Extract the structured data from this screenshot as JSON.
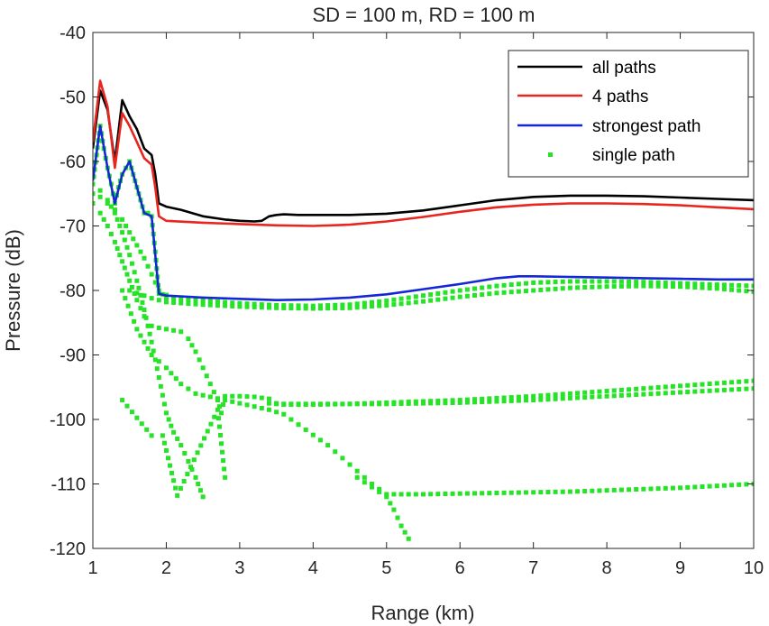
{
  "chart_data": {
    "type": "line",
    "title": "SD = 100 m, RD = 100 m",
    "xlabel": "Range (km)",
    "ylabel": "Pressure (dB)",
    "xlim": [
      1,
      10
    ],
    "ylim": [
      -120,
      -40
    ],
    "xticks": [
      1,
      2,
      3,
      4,
      5,
      6,
      7,
      8,
      9,
      10
    ],
    "yticks": [
      -120,
      -110,
      -100,
      -90,
      -80,
      -70,
      -60,
      -50,
      -40
    ],
    "xtick_labels": [
      "1",
      "2",
      "3",
      "4",
      "5",
      "6",
      "7",
      "8",
      "9",
      "10"
    ],
    "ytick_labels": [
      "-120",
      "-110",
      "-100",
      "-90",
      "-80",
      "-70",
      "-60",
      "-50",
      "-40"
    ],
    "grid": false,
    "legend_position": "top-right",
    "series": [
      {
        "name": "all paths",
        "style": "line",
        "color": "#000000",
        "x": [
          1.0,
          1.1,
          1.2,
          1.3,
          1.4,
          1.5,
          1.6,
          1.7,
          1.8,
          1.85,
          1.9,
          2.0,
          2.2,
          2.5,
          2.8,
          3.0,
          3.2,
          3.3,
          3.4,
          3.5,
          3.6,
          3.8,
          4.0,
          4.5,
          5.0,
          5.5,
          6.0,
          6.5,
          7.0,
          7.5,
          8.0,
          8.5,
          9.0,
          9.5,
          10.0
        ],
        "y": [
          -58,
          -49,
          -52,
          -60,
          -50.5,
          -53,
          -55,
          -58,
          -59,
          -62,
          -66.5,
          -67,
          -67.5,
          -68.5,
          -69,
          -69.2,
          -69.3,
          -69.2,
          -68.5,
          -68.3,
          -68.2,
          -68.3,
          -68.3,
          -68.3,
          -68.1,
          -67.6,
          -66.8,
          -66.0,
          -65.5,
          -65.3,
          -65.3,
          -65.4,
          -65.6,
          -65.8,
          -66.0
        ]
      },
      {
        "name": "4 paths",
        "style": "line",
        "color": "#e8251f",
        "x": [
          1.0,
          1.1,
          1.2,
          1.3,
          1.4,
          1.5,
          1.6,
          1.7,
          1.8,
          1.85,
          1.9,
          2.0,
          2.5,
          3.0,
          3.5,
          4.0,
          4.5,
          5.0,
          5.5,
          6.0,
          6.5,
          7.0,
          7.5,
          8.0,
          8.5,
          9.0,
          9.5,
          10.0
        ],
        "y": [
          -57,
          -47.5,
          -51.5,
          -61,
          -52.5,
          -54.5,
          -57,
          -59.5,
          -60.5,
          -64,
          -68.5,
          -69.2,
          -69.5,
          -69.7,
          -69.9,
          -70.0,
          -69.8,
          -69.3,
          -68.6,
          -67.8,
          -67.1,
          -66.7,
          -66.5,
          -66.5,
          -66.6,
          -66.8,
          -67.1,
          -67.4
        ]
      },
      {
        "name": "strongest path",
        "style": "line",
        "color": "#1427d6",
        "x": [
          1.0,
          1.1,
          1.2,
          1.3,
          1.4,
          1.5,
          1.6,
          1.7,
          1.8,
          1.9,
          2.0,
          2.5,
          3.0,
          3.5,
          4.0,
          4.5,
          5.0,
          5.5,
          6.0,
          6.5,
          6.8,
          7.0,
          7.5,
          8.0,
          8.5,
          9.0,
          9.5,
          10.0
        ],
        "y": [
          -63,
          -54.5,
          -61,
          -66.5,
          -62,
          -60,
          -64,
          -68,
          -68.5,
          -80.5,
          -80.8,
          -81.1,
          -81.3,
          -81.5,
          -81.4,
          -81.1,
          -80.6,
          -79.8,
          -79.0,
          -78.1,
          -77.8,
          -77.8,
          -77.9,
          -78.0,
          -78.1,
          -78.2,
          -78.3,
          -78.3
        ]
      },
      {
        "name": "single path",
        "style": "dots",
        "color": "#27e327",
        "x": [
          1.0,
          1.05,
          1.1,
          1.15,
          1.2,
          1.25,
          1.3,
          1.35,
          1.4,
          1.45,
          1.5,
          1.55,
          1.6,
          1.65,
          1.7,
          1.75,
          1.8,
          1.85,
          1.9,
          1.95,
          2.0
        ],
        "y": [
          -63.5,
          -59,
          -54.5,
          -58,
          -61,
          -63.5,
          -66.5,
          -64,
          -62,
          -61,
          -60,
          -62,
          -64,
          -66,
          -68,
          -68,
          -68.5,
          -74,
          -80.5,
          -80.6,
          -80.7
        ]
      },
      {
        "name": "",
        "style": "dots",
        "color": "#27e327",
        "x": [
          1.0,
          1.1,
          1.2,
          1.3,
          1.4,
          1.5,
          1.6,
          1.7,
          1.8,
          1.9,
          2.0,
          2.5,
          3.0,
          3.5,
          4.0,
          4.5,
          5.0,
          5.5,
          6.0,
          6.5,
          7.0,
          7.5,
          8.0,
          8.5,
          9.0,
          9.5,
          10.0
        ],
        "y": [
          -65,
          -65.5,
          -66.5,
          -67.5,
          -69,
          -71,
          -73,
          -75,
          -77.5,
          -80,
          -81.2,
          -81.6,
          -82.0,
          -82.3,
          -82.4,
          -82.2,
          -81.6,
          -80.8,
          -80.0,
          -79.3,
          -78.8,
          -78.6,
          -78.6,
          -78.7,
          -78.9,
          -79.1,
          -79.3
        ]
      },
      {
        "name": "",
        "style": "dots",
        "color": "#27e327",
        "x": [
          1.5,
          1.6,
          1.7,
          1.8,
          1.9,
          2.0,
          2.5,
          3.0,
          3.5,
          4.0,
          4.5,
          5.0,
          5.5,
          6.0,
          6.5,
          7.0,
          7.5,
          8.0,
          8.5,
          9.0,
          9.5,
          10.0
        ],
        "y": [
          -80.0,
          -80.4,
          -80.8,
          -81.2,
          -81.5,
          -81.8,
          -82.2,
          -82.5,
          -82.7,
          -82.8,
          -82.7,
          -82.3,
          -81.7,
          -81.0,
          -80.4,
          -80.0,
          -79.6,
          -79.4,
          -79.3,
          -79.4,
          -79.7,
          -80.2
        ]
      },
      {
        "name": "",
        "style": "dots",
        "color": "#27e327",
        "x": [
          1.0,
          1.1,
          1.2,
          1.3,
          1.4,
          1.5,
          1.6,
          1.7,
          1.8,
          1.9,
          2.0,
          2.1,
          2.2,
          2.3,
          2.4,
          2.5,
          2.6,
          2.7,
          2.75,
          2.8,
          3.0,
          3.2,
          3.4,
          3.5,
          3.6,
          3.8,
          4.0,
          4.5,
          5.0,
          5.5,
          6.0,
          6.5,
          7.0,
          7.5,
          8.0,
          8.5,
          9.0,
          9.5,
          10.0
        ],
        "y": [
          -66.5,
          -68,
          -70,
          -72.5,
          -75.5,
          -78.5,
          -81.5,
          -84,
          -85.5,
          -85.8,
          -86,
          -86.2,
          -86.4,
          -87.5,
          -89.5,
          -92,
          -94.5,
          -97,
          -99,
          -96.4,
          -96.4,
          -96.5,
          -96.8,
          -97.5,
          -97.6,
          -97.6,
          -97.6,
          -97.6,
          -97.6,
          -97.5,
          -97.4,
          -97.2,
          -97.0,
          -96.7,
          -96.4,
          -96.1,
          -95.8,
          -95.5,
          -95.2
        ]
      },
      {
        "name": "",
        "style": "dots",
        "color": "#27e327",
        "x": [
          3.4,
          3.5,
          3.6,
          3.8,
          4.0,
          4.5,
          5.0,
          5.5,
          6.0,
          6.5,
          7.0,
          7.5,
          8.0,
          8.5,
          9.0,
          9.5,
          10.0
        ],
        "y": [
          -97.5,
          -97.6,
          -97.7,
          -97.7,
          -97.7,
          -97.6,
          -97.4,
          -97.2,
          -97.0,
          -96.7,
          -96.4,
          -96.0,
          -95.6,
          -95.2,
          -94.8,
          -94.4,
          -94.0
        ]
      },
      {
        "name": "",
        "style": "dots",
        "color": "#27e327",
        "x": [
          1.4,
          1.6,
          1.8,
          2.0,
          2.2,
          2.4,
          2.6,
          2.8,
          3.0,
          3.2,
          3.4,
          3.6,
          3.8,
          4.0,
          4.2,
          4.4,
          4.6,
          4.8,
          5.0,
          5.5,
          6.0,
          6.5,
          7.0,
          7.5,
          8.0,
          8.5,
          9.0,
          9.5,
          10.0
        ],
        "y": [
          -80,
          -86,
          -90,
          -92,
          -94.5,
          -96,
          -96.5,
          -97,
          -97.5,
          -98,
          -98.5,
          -99.2,
          -100.8,
          -102.4,
          -104,
          -106,
          -108,
          -110,
          -111.6,
          -111.6,
          -111.5,
          -111.4,
          -111.3,
          -111.2,
          -111.0,
          -110.8,
          -110.6,
          -110.3,
          -110.0
        ]
      },
      {
        "name": "",
        "style": "dots",
        "color": "#27e327",
        "x": [
          1.0,
          1.1,
          1.2,
          1.3,
          1.4,
          1.5,
          1.6,
          1.7,
          1.8,
          1.9,
          2.0,
          2.1,
          2.2,
          2.3,
          2.4,
          2.5
        ],
        "y": [
          -63.5,
          -64.5,
          -66,
          -68,
          -71,
          -74.5,
          -78.5,
          -83,
          -88,
          -93.5,
          -99,
          -102,
          -104,
          -106.5,
          -109,
          -112
        ]
      },
      {
        "name": "",
        "style": "dots",
        "color": "#27e327",
        "x": [
          1.4,
          1.8,
          1.95,
          2.15,
          2.7,
          2.8
        ],
        "y": [
          -97,
          -102.5,
          -102.5,
          -111.8,
          -98.5,
          -109
        ]
      },
      {
        "name": "",
        "style": "dots",
        "color": "#27e327",
        "x": [
          4.6,
          4.8,
          5.0,
          5.1,
          5.2,
          5.3
        ],
        "y": [
          -109,
          -110.5,
          -112,
          -114,
          -116.5,
          -118.5
        ]
      }
    ]
  },
  "legend": {
    "items": [
      {
        "label": "all paths",
        "color": "#000000",
        "marker": "line"
      },
      {
        "label": "4 paths",
        "color": "#e8251f",
        "marker": "line"
      },
      {
        "label": "strongest path",
        "color": "#1427d6",
        "marker": "line"
      },
      {
        "label": "single path",
        "color": "#27e327",
        "marker": "dot"
      }
    ]
  }
}
